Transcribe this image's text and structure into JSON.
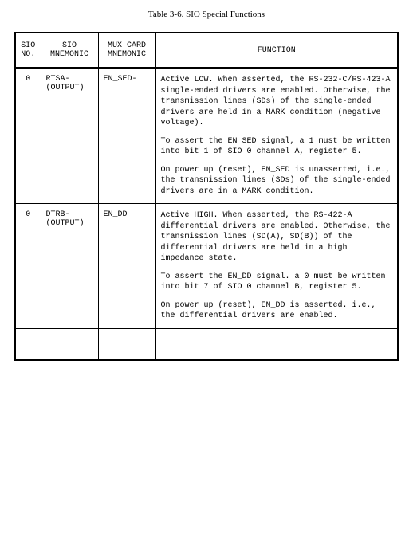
{
  "title": "Table 3-6. SIO Special Functions",
  "headers": {
    "sio_no": "SIO\nNO.",
    "sio_mnem": "SIO\nMNEMONIC",
    "mux_mnem": "MUX CARD\nMNEMONIC",
    "function": "FUNCTION"
  },
  "rows": [
    {
      "sio_no": "0",
      "sio_mnem": "RTSA-\n(OUTPUT)",
      "mux_mnem": "EN_SED-",
      "paras": [
        "Active LOW.  When asserted, the RS-232-C/RS-423-A single-ended drivers are enabled.  Otherwise, the transmission lines (SDs) of the single-ended drivers are held in a MARK condition (negative voltage).",
        "To assert the EN_SED signal, a 1 must be written into bit 1 of SIO  0 channel A, register 5.",
        "On power up (reset), EN_SED is unasserted, i.e., the transmission lines (SDs) of the single-ended drivers are in a MARK condition."
      ]
    },
    {
      "sio_no": "0",
      "sio_mnem": "DTRB-\n(OUTPUT)",
      "mux_mnem": "EN_DD",
      "paras": [
        "Active HIGH.  When asserted, the RS-422-A differential drivers are enabled.  Otherwise, the transmission lines (SD(A), SD(B)) of the differential drivers are held in a high impedance state.",
        "To assert the EN_DD signal. a 0 must be written into bit 7 of SIO  0 channel B, register 5.",
        "On power up (reset), EN_DD is asserted. i.e., the differential drivers are enabled."
      ]
    }
  ]
}
